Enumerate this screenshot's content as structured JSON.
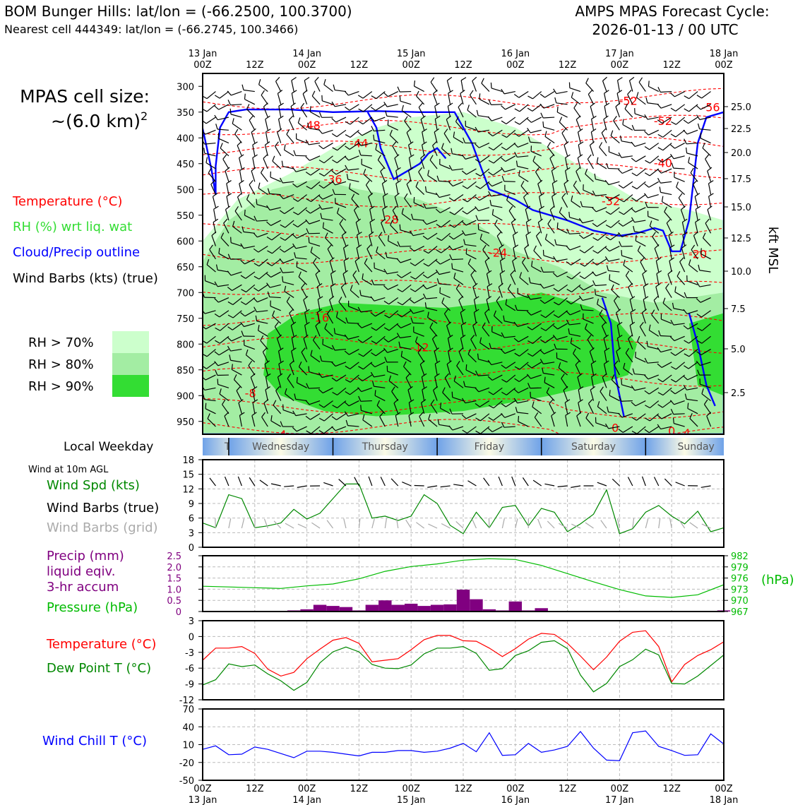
{
  "header": {
    "station_line": "BOM Bunger Hills: lat/lon = (-66.2500, 100.3700)",
    "cell_line": "Nearest cell 444349: lat/lon = (-66.2745, 100.3466)",
    "cycle_title": "AMPS MPAS Forecast Cycle:",
    "cycle_time": "2026-01-13 / 00 UTC"
  },
  "left_panel": {
    "cell_size_label": "MPAS cell size:",
    "cell_size_value": "~(6.0 km)",
    "cell_size_exp": "2",
    "legend": [
      {
        "text": "Temperature (°C)",
        "color": "#ff0000"
      },
      {
        "text": "RH (%) wrt liq. wat",
        "color": "#33dd33"
      },
      {
        "text": "Cloud/Precip outline",
        "color": "#0000ff"
      },
      {
        "text": "Wind Barbs (kts) (true)",
        "color": "#000000"
      }
    ],
    "rh_legend": [
      {
        "text": "RH > 70%",
        "color": "#ccffcc"
      },
      {
        "text": "RH > 80%",
        "color": "#a3eda3"
      },
      {
        "text": "RH > 90%",
        "color": "#33dd33"
      }
    ]
  },
  "time_axis": {
    "top_labels": [
      {
        "l1": "13 Jan",
        "l2": "00Z"
      },
      {
        "l1": "",
        "l2": "12Z"
      },
      {
        "l1": "14 Jan",
        "l2": "00Z"
      },
      {
        "l1": "",
        "l2": "12Z"
      },
      {
        "l1": "15 Jan",
        "l2": "00Z"
      },
      {
        "l1": "",
        "l2": "12Z"
      },
      {
        "l1": "16 Jan",
        "l2": "00Z"
      },
      {
        "l1": "",
        "l2": "12Z"
      },
      {
        "l1": "17 Jan",
        "l2": "00Z"
      },
      {
        "l1": "",
        "l2": "12Z"
      },
      {
        "l1": "18 Jan",
        "l2": "00Z"
      }
    ],
    "bottom_labels": [
      {
        "l1": "00Z",
        "l2": "13 Jan"
      },
      {
        "l1": "12Z",
        "l2": ""
      },
      {
        "l1": "00Z",
        "l2": "14 Jan"
      },
      {
        "l1": "12Z",
        "l2": ""
      },
      {
        "l1": "00Z",
        "l2": "15 Jan"
      },
      {
        "l1": "12Z",
        "l2": ""
      },
      {
        "l1": "00Z",
        "l2": "16 Jan"
      },
      {
        "l1": "12Z",
        "l2": ""
      },
      {
        "l1": "00Z",
        "l2": "17 Jan"
      },
      {
        "l1": "12Z",
        "l2": ""
      },
      {
        "l1": "00Z",
        "l2": "18 Jan"
      }
    ]
  },
  "weekday": {
    "label": "Local Weekday",
    "days": [
      "Tuesday",
      "Wednesday",
      "Thursday",
      "Friday",
      "Saturday",
      "Sunday"
    ]
  },
  "chart_data": [
    {
      "type": "heatmap",
      "title": "",
      "ylabel_right": "kft MSL",
      "yticks_hpa": [
        300,
        350,
        400,
        450,
        500,
        550,
        600,
        650,
        700,
        750,
        800,
        850,
        900,
        950
      ],
      "yticks_kft": [
        "25.0",
        "22.5",
        "20.0",
        "17.5",
        "15.0",
        "12.5",
        "10.0",
        "7.5",
        "5.0",
        "2.5"
      ],
      "ylim_hpa": [
        975,
        275
      ],
      "xlim_hours": [
        0,
        120
      ],
      "temperature_contour_labels": [
        "-52",
        "-56",
        "-52",
        "-48",
        "-44",
        "-40",
        "-36",
        "-32",
        "-28",
        "-24",
        "-20",
        "-16",
        "-12",
        "-8",
        "-4",
        "-4",
        "0",
        "0"
      ]
    },
    {
      "type": "line",
      "title": "Wind at 10m AGL",
      "series": [
        {
          "name": "Wind Spd (kts)",
          "color": "#008800",
          "x": [
            0,
            3,
            6,
            9,
            12,
            15,
            18,
            21,
            24,
            27,
            30,
            33,
            36,
            39,
            42,
            45,
            48,
            51,
            54,
            57,
            60,
            63,
            66,
            69,
            72,
            75,
            78,
            81,
            84,
            87,
            90,
            93,
            96,
            99,
            102,
            105,
            108,
            111,
            114,
            117,
            120
          ],
          "values": [
            5,
            4,
            10.8,
            10,
            4,
            4.4,
            5,
            7.8,
            5.8,
            7,
            10,
            13,
            13,
            6,
            6.4,
            5.5,
            6.4,
            10.8,
            9,
            4.5,
            2.8,
            7.2,
            4,
            8.2,
            8.6,
            4.4,
            8,
            7.2,
            3.2,
            4.8,
            6.8,
            11.8,
            2.8,
            3.8,
            7.2,
            8.6,
            6.4,
            4.8,
            7.4,
            3.2,
            4
          ]
        }
      ],
      "extra_legend": [
        {
          "text": "Wind Barbs (true)",
          "color": "#000000"
        },
        {
          "text": "Wind Barbs (grid)",
          "color": "#aaaaaa"
        }
      ],
      "ylim": [
        0,
        18
      ],
      "yticks": [
        0,
        3,
        6,
        9,
        12,
        15,
        18
      ]
    },
    {
      "type": "bar",
      "bar_series": {
        "name": "Precip (mm)",
        "name2": "liquid eqiv.",
        "name3": "3-hr accum",
        "color": "#800080",
        "x": [
          0,
          3,
          6,
          9,
          12,
          15,
          18,
          21,
          24,
          27,
          30,
          33,
          36,
          39,
          42,
          45,
          48,
          51,
          54,
          57,
          60,
          63,
          66,
          69,
          72,
          75,
          78,
          81,
          84,
          87,
          90,
          93,
          96,
          99,
          102,
          105,
          108,
          111,
          114,
          117,
          120
        ],
        "values": [
          0,
          0,
          0,
          0,
          0,
          0.02,
          0.01,
          0.05,
          0.1,
          0.3,
          0.25,
          0.2,
          0.05,
          0.3,
          0.5,
          0.3,
          0.35,
          0.25,
          0.3,
          0.32,
          0.98,
          0.55,
          0.1,
          0.05,
          0.45,
          0.05,
          0.15,
          0,
          0,
          0,
          0,
          0,
          0,
          0,
          0,
          0,
          0,
          0,
          0,
          0,
          0.05
        ]
      },
      "line_series": {
        "name": "Pressure (hPa)",
        "color": "#00bb00",
        "x": [
          0,
          6,
          12,
          18,
          24,
          30,
          36,
          42,
          48,
          54,
          60,
          66,
          72,
          78,
          84,
          90,
          96,
          102,
          108,
          114,
          120
        ],
        "values": [
          973.8,
          973.6,
          973.4,
          973.2,
          973.9,
          974.4,
          975.8,
          977.8,
          979.1,
          979.8,
          980.8,
          981.2,
          981,
          979.4,
          977.2,
          975,
          972.9,
          971.2,
          970.8,
          971.5,
          974.2
        ]
      },
      "ylim_left": [
        0,
        2.5
      ],
      "yticks_left": [
        "0",
        "0.5",
        "1.0",
        "1.5",
        "2.0",
        "2.5"
      ],
      "ylim_right": [
        967,
        982
      ],
      "yticks_right": [
        "967",
        "970",
        "973",
        "976",
        "979",
        "982"
      ],
      "ylabel_right": "(hPa)"
    },
    {
      "type": "line",
      "series": [
        {
          "name": "Temperature (°C)",
          "color": "#ff0000",
          "x": [
            0,
            3,
            6,
            9,
            12,
            15,
            18,
            21,
            24,
            27,
            30,
            33,
            36,
            39,
            42,
            45,
            48,
            51,
            54,
            57,
            60,
            63,
            66,
            69,
            72,
            75,
            78,
            81,
            84,
            87,
            90,
            93,
            96,
            99,
            102,
            105,
            108,
            111,
            114,
            117,
            120
          ],
          "values": [
            -4.5,
            -2.2,
            -2.2,
            -1.9,
            -3.2,
            -6.2,
            -7.5,
            -6.8,
            -4.2,
            -2.4,
            -0.7,
            -0.2,
            -1.3,
            -4.8,
            -4.5,
            -4.2,
            -2.5,
            -0.6,
            0.2,
            0.2,
            -0.8,
            -0.9,
            -2.2,
            -3.8,
            -2.3,
            -0.5,
            0.6,
            0.4,
            -1.3,
            -3.7,
            -6.3,
            -3.9,
            -0.9,
            0.8,
            1.1,
            -1.9,
            -8.6,
            -5.3,
            -3.6,
            -2.5,
            -1
          ]
        },
        {
          "name": "Dew Point T (°C)",
          "color": "#008800",
          "x": [
            0,
            3,
            6,
            9,
            12,
            15,
            18,
            21,
            24,
            27,
            30,
            33,
            36,
            39,
            42,
            45,
            48,
            51,
            54,
            57,
            60,
            63,
            66,
            69,
            72,
            75,
            78,
            81,
            84,
            87,
            90,
            93,
            96,
            99,
            102,
            105,
            108,
            111,
            114,
            117,
            120
          ],
          "values": [
            -9.2,
            -8.2,
            -5.2,
            -5.7,
            -5.4,
            -7.1,
            -8.4,
            -10.2,
            -8.7,
            -5,
            -2.9,
            -2,
            -2.9,
            -5.3,
            -6,
            -6.1,
            -5.4,
            -3.3,
            -2.2,
            -2.2,
            -1.9,
            -3.2,
            -6.4,
            -6.1,
            -3.6,
            -2.7,
            -1.1,
            -0.8,
            -2.3,
            -7.3,
            -10.5,
            -8.9,
            -5.7,
            -4.4,
            -2.4,
            -3.5,
            -8.9,
            -9,
            -7.5,
            -5.5,
            -3.5
          ]
        }
      ],
      "ylim": [
        -12,
        3
      ],
      "yticks": [
        "3",
        "0",
        "-3",
        "-6",
        "-9",
        "-12"
      ]
    },
    {
      "type": "line",
      "series": [
        {
          "name": "Wind Chill T (°C)",
          "color": "#0000ff",
          "x": [
            0,
            3,
            6,
            9,
            12,
            15,
            18,
            21,
            24,
            27,
            30,
            33,
            36,
            39,
            42,
            45,
            48,
            51,
            54,
            57,
            60,
            63,
            66,
            69,
            72,
            75,
            78,
            81,
            84,
            87,
            90,
            93,
            96,
            99,
            102,
            105,
            108,
            111,
            114,
            117,
            120
          ],
          "values": [
            2,
            8,
            -7,
            -6,
            6,
            2,
            -5,
            -12,
            -1,
            -1,
            -3,
            -6,
            -9,
            -3,
            -3,
            0,
            0,
            -3,
            -1,
            4,
            12,
            -2,
            30,
            -8,
            -7,
            12,
            -3,
            1,
            7,
            32,
            4,
            -16,
            -17,
            30,
            33,
            7,
            0,
            -8,
            -7,
            28,
            11
          ]
        }
      ],
      "ylim": [
        -50,
        70
      ],
      "yticks": [
        "70",
        "40",
        "10",
        "-20",
        "-50"
      ]
    }
  ]
}
